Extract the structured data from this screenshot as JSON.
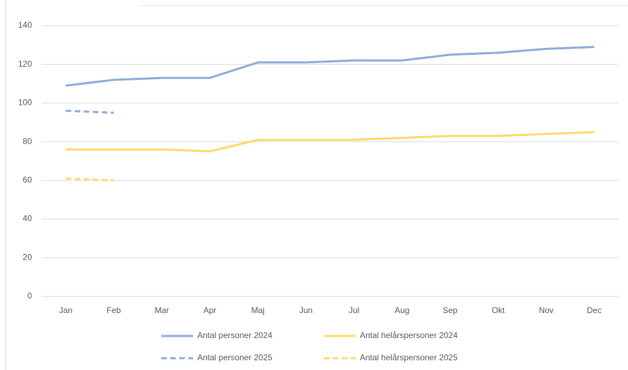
{
  "chart_data": {
    "type": "line",
    "categories": [
      "Jan",
      "Feb",
      "Mar",
      "Apr",
      "Maj",
      "Jun",
      "Jul",
      "Aug",
      "Sep",
      "Okt",
      "Nov",
      "Dec"
    ],
    "series": [
      {
        "name": "Antal personer 2024",
        "color": "#8eaadb",
        "dashed": false,
        "values": [
          109,
          112,
          113,
          113,
          121,
          121,
          122,
          122,
          125,
          126,
          128,
          129
        ]
      },
      {
        "name": "Antal helårspersoner 2024",
        "color": "#ffd966",
        "dashed": false,
        "values": [
          76,
          76,
          76,
          75,
          81,
          81,
          81,
          82,
          83,
          83,
          84,
          85
        ]
      },
      {
        "name": "Antal personer 2025",
        "color": "#8eaadb",
        "dashed": true,
        "values": [
          96,
          95,
          null,
          null,
          null,
          null,
          null,
          null,
          null,
          null,
          null,
          null
        ]
      },
      {
        "name": "Antal helårspersoner 2025",
        "color": "#ffd966",
        "dashed": true,
        "values": [
          61,
          60,
          null,
          null,
          null,
          null,
          null,
          null,
          null,
          null,
          null,
          null
        ]
      }
    ],
    "ylim": [
      0,
      140
    ],
    "yticks": [
      0,
      20,
      40,
      60,
      80,
      100,
      120,
      140
    ],
    "grid": true
  }
}
